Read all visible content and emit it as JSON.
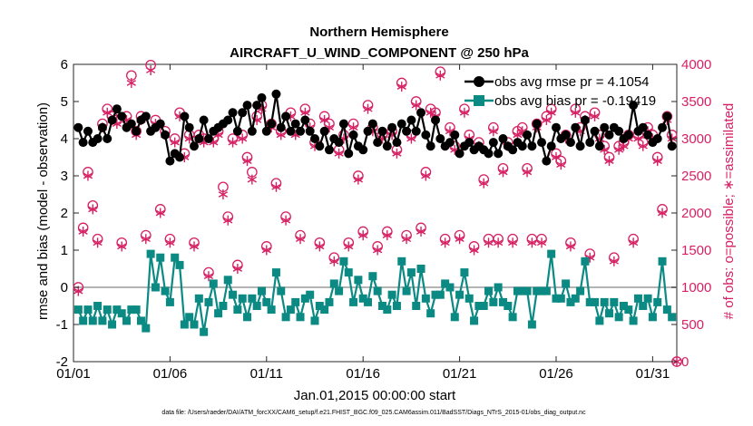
{
  "chart_data": {
    "type": "line",
    "title": "Northern Hemisphere",
    "subtitle": "AIRCRAFT_U_WIND_COMPONENT @ 250 hPa",
    "xlabel": "Jan.01,2015 00:00:00 start",
    "ylabel": "rmse and bias (model - observation)",
    "y2label": "# of obs: o=possible; ∗=assimilated",
    "footer": "data file: /Users/raeder/DAI/ATM_forcXX/CAM6_setup/f.e21.FHIST_BGC.f09_025.CAM6assim.011/BadSST/Diags_NTrS_2015-01/obs_diag_output.nc",
    "xlim": [
      0,
      31.25
    ],
    "ylim": [
      -2,
      6
    ],
    "y2lim": [
      0,
      4000
    ],
    "xticks": [
      0,
      5,
      10,
      15,
      20,
      25,
      30
    ],
    "xticklabels": [
      "01/01",
      "01/06",
      "01/11",
      "01/16",
      "01/21",
      "01/26",
      "01/31"
    ],
    "yticks": [
      -2,
      -1,
      0,
      1,
      2,
      3,
      4,
      5,
      6
    ],
    "y2ticks": [
      0,
      500,
      1000,
      1500,
      2000,
      2500,
      3000,
      3500,
      4000
    ],
    "grid": false,
    "legend_location": "top-right",
    "zero_line_color": "#b4b4b4",
    "colors": {
      "rmse": "#000000",
      "bias": "#0b8a84",
      "obs": "#d62063"
    },
    "series": [
      {
        "name": "obs avg rmse pr = 4.1054",
        "axis": "left",
        "color": "#000000",
        "marker": "circle",
        "x": [
          0.25,
          0.5,
          0.75,
          1.0,
          1.25,
          1.5,
          1.75,
          2.0,
          2.25,
          2.5,
          2.75,
          3.0,
          3.25,
          3.5,
          3.75,
          4.0,
          4.25,
          4.5,
          4.75,
          5.0,
          5.25,
          5.5,
          5.75,
          6.0,
          6.25,
          6.5,
          6.75,
          7.0,
          7.25,
          7.5,
          7.75,
          8.0,
          8.25,
          8.5,
          8.75,
          9.0,
          9.25,
          9.5,
          9.75,
          10.0,
          10.25,
          10.5,
          10.75,
          11.0,
          11.25,
          11.5,
          11.75,
          12.0,
          12.25,
          12.5,
          12.75,
          13.0,
          13.25,
          13.5,
          13.75,
          14.0,
          14.25,
          14.5,
          14.75,
          15.0,
          15.25,
          15.5,
          15.75,
          16.0,
          16.25,
          16.5,
          16.75,
          17.0,
          17.25,
          17.5,
          17.75,
          18.0,
          18.25,
          18.5,
          18.75,
          19.0,
          19.25,
          19.5,
          19.75,
          20.0,
          20.25,
          20.5,
          20.75,
          21.0,
          21.25,
          21.5,
          21.75,
          22.0,
          22.25,
          22.5,
          22.75,
          23.0,
          23.25,
          23.5,
          23.75,
          24.0,
          24.25,
          24.5,
          24.75,
          25.0,
          25.25,
          25.5,
          25.75,
          26.0,
          26.25,
          26.5,
          26.75,
          27.0,
          27.25,
          27.5,
          27.75,
          28.0,
          28.25,
          28.5,
          28.75,
          29.0,
          29.25,
          29.5,
          29.75,
          30.0,
          30.25,
          30.5,
          30.75,
          31.0
        ],
        "y": [
          4.3,
          3.9,
          4.2,
          3.9,
          4.0,
          4.3,
          4.0,
          4.5,
          4.8,
          4.6,
          4.3,
          4.4,
          4.2,
          4.5,
          4.6,
          4.2,
          4.3,
          4.4,
          4.1,
          3.4,
          3.6,
          3.5,
          4.6,
          4.3,
          3.8,
          4.0,
          4.5,
          4.0,
          4.2,
          4.3,
          4.4,
          4.5,
          4.7,
          4.2,
          4.7,
          4.9,
          4.2,
          4.9,
          5.1,
          4.2,
          4.4,
          5.2,
          4.3,
          4.6,
          4.2,
          4.4,
          4.2,
          4.5,
          4.2,
          4.0,
          3.8,
          4.2,
          3.7,
          4.0,
          3.9,
          4.4,
          3.6,
          4.1,
          3.8,
          3.7,
          4.2,
          4.4,
          3.9,
          4.2,
          3.8,
          4.3,
          3.9,
          4.4,
          4.2,
          4.5,
          4.2,
          4.7,
          4.1,
          3.8,
          4.5,
          4.0,
          3.8,
          3.9,
          4.1,
          3.6,
          3.8,
          3.9,
          3.7,
          3.8,
          3.7,
          3.6,
          3.9,
          3.6,
          4.0,
          3.8,
          3.7,
          3.9,
          3.8,
          4.1,
          3.8,
          4.4,
          3.9,
          3.4,
          3.8,
          4.3,
          4.0,
          4.1,
          3.9,
          4.3,
          3.8,
          4.5,
          3.9,
          4.2,
          3.8,
          4.3,
          4.1,
          4.3,
          4.2,
          4.0,
          4.1,
          4.9,
          4.2,
          4.3,
          4.1,
          3.9,
          4.0,
          4.3,
          4.6,
          3.8
        ]
      },
      {
        "name": "obs avg bias pr = -0.19419",
        "axis": "left",
        "color": "#0b8a84",
        "marker": "square",
        "x": [
          0.25,
          0.5,
          0.75,
          1.0,
          1.25,
          1.5,
          1.75,
          2.0,
          2.25,
          2.5,
          2.75,
          3.0,
          3.25,
          3.5,
          3.75,
          4.0,
          4.25,
          4.5,
          4.75,
          5.0,
          5.25,
          5.5,
          5.75,
          6.0,
          6.25,
          6.5,
          6.75,
          7.0,
          7.25,
          7.5,
          7.75,
          8.0,
          8.25,
          8.5,
          8.75,
          9.0,
          9.25,
          9.5,
          9.75,
          10.0,
          10.25,
          10.5,
          10.75,
          11.0,
          11.25,
          11.5,
          11.75,
          12.0,
          12.25,
          12.5,
          12.75,
          13.0,
          13.25,
          13.5,
          13.75,
          14.0,
          14.25,
          14.5,
          14.75,
          15.0,
          15.25,
          15.5,
          15.75,
          16.0,
          16.25,
          16.5,
          16.75,
          17.0,
          17.25,
          17.5,
          17.75,
          18.0,
          18.25,
          18.5,
          18.75,
          19.0,
          19.25,
          19.5,
          19.75,
          20.0,
          20.25,
          20.5,
          20.75,
          21.0,
          21.25,
          21.5,
          21.75,
          22.0,
          22.25,
          22.5,
          22.75,
          23.0,
          23.25,
          23.5,
          23.75,
          24.0,
          24.25,
          24.5,
          24.75,
          25.0,
          25.25,
          25.5,
          25.75,
          26.0,
          26.25,
          26.5,
          26.75,
          27.0,
          27.25,
          27.5,
          27.75,
          28.0,
          28.25,
          28.5,
          28.75,
          29.0,
          29.25,
          29.5,
          29.75,
          30.0,
          30.25,
          30.5,
          30.75,
          31.0
        ],
        "y": [
          -0.6,
          -0.9,
          -0.6,
          -0.9,
          -0.5,
          -0.9,
          -0.6,
          -1.0,
          -0.6,
          -0.7,
          -0.9,
          -0.6,
          -0.6,
          -0.9,
          -1.1,
          0.9,
          0.0,
          0.8,
          -0.1,
          -0.4,
          0.8,
          0.6,
          -1.0,
          -0.8,
          -1.0,
          -0.3,
          -1.2,
          -0.4,
          0.1,
          -0.7,
          -0.5,
          0.2,
          -0.2,
          -0.6,
          -0.3,
          -0.8,
          -0.3,
          -0.5,
          -0.1,
          -0.4,
          -0.6,
          0.4,
          -0.1,
          -0.8,
          -0.6,
          -0.4,
          -0.8,
          -0.3,
          -0.2,
          -0.9,
          -0.5,
          -0.6,
          -0.4,
          0.1,
          -0.1,
          0.7,
          0.4,
          -0.4,
          0.2,
          -0.3,
          -0.4,
          0.3,
          -0.1,
          -0.5,
          -0.6,
          -0.2,
          -0.5,
          0.7,
          -0.1,
          0.4,
          -0.5,
          0.5,
          -0.3,
          -0.7,
          -0.2,
          -0.2,
          0.1,
          0.0,
          -0.8,
          -0.2,
          0.4,
          -0.3,
          -0.9,
          -0.5,
          -0.5,
          -0.1,
          -0.4,
          0.0,
          -0.4,
          -0.5,
          -0.8,
          -0.1,
          -0.1,
          -0.1,
          -1.0,
          -0.1,
          -0.1,
          -0.1,
          0.9,
          -0.3,
          -0.3,
          0.1,
          -0.4,
          -0.3,
          -0.1,
          0.7,
          -0.4,
          -0.4,
          -0.9,
          -0.4,
          -0.7,
          -0.4,
          -0.8,
          -0.5,
          -0.6,
          -0.9,
          -0.3,
          -0.5,
          -0.3,
          -0.8,
          -0.4,
          0.7,
          -0.6,
          -0.8
        ]
      },
      {
        "name": "possible",
        "axis": "right",
        "color": "#d62063",
        "marker": "circle-open",
        "x": [
          0.25,
          0.5,
          0.75,
          1.0,
          1.25,
          1.5,
          1.75,
          2.0,
          2.25,
          2.5,
          2.75,
          3.0,
          3.25,
          3.5,
          3.75,
          4.0,
          4.25,
          4.5,
          4.75,
          5.0,
          5.25,
          5.5,
          5.75,
          6.0,
          6.25,
          6.5,
          6.75,
          7.0,
          7.25,
          7.5,
          7.75,
          8.0,
          8.25,
          8.5,
          8.75,
          9.0,
          9.25,
          9.5,
          9.75,
          10.0,
          10.25,
          10.5,
          10.75,
          11.0,
          11.25,
          11.5,
          11.75,
          12.0,
          12.25,
          12.5,
          12.75,
          13.0,
          13.25,
          13.5,
          13.75,
          14.0,
          14.25,
          14.5,
          14.75,
          15.0,
          15.25,
          15.5,
          15.75,
          16.0,
          16.25,
          16.5,
          16.75,
          17.0,
          17.25,
          17.5,
          17.75,
          18.0,
          18.25,
          18.5,
          18.75,
          19.0,
          19.25,
          19.5,
          19.75,
          20.0,
          20.25,
          20.5,
          20.75,
          21.0,
          21.25,
          21.5,
          21.75,
          22.0,
          22.25,
          22.5,
          22.75,
          23.0,
          23.25,
          23.5,
          23.75,
          24.0,
          24.25,
          24.5,
          24.75,
          25.0,
          25.25,
          25.5,
          25.75,
          26.0,
          26.25,
          26.5,
          26.75,
          27.0,
          27.25,
          27.5,
          27.75,
          28.0,
          28.25,
          28.5,
          28.75,
          29.0,
          29.25,
          29.5,
          29.75,
          30.0,
          30.25,
          30.5,
          30.75,
          31.0
        ],
        "y": [
          1000,
          1800,
          2550,
          2100,
          1650,
          3200,
          3400,
          3300,
          3250,
          1600,
          3300,
          3850,
          3100,
          3300,
          1700,
          3990,
          3250,
          2050,
          3100,
          1650,
          3000,
          3350,
          2800,
          3050,
          1600,
          3050,
          3000,
          1200,
          3000,
          3100,
          2350,
          1950,
          3000,
          1300,
          3050,
          2750,
          2550,
          3300,
          3450,
          1550,
          3200,
          2400,
          3100,
          1950,
          3350,
          3100,
          1700,
          3400,
          3200,
          2950,
          1600,
          3300,
          3200,
          1400,
          2850,
          3050,
          1600,
          3200,
          2500,
          1750,
          3450,
          3150,
          1550,
          3050,
          1750,
          3100,
          2850,
          3750,
          1700,
          3050,
          3500,
          1800,
          2550,
          3400,
          3350,
          3900,
          1650,
          3150,
          2900,
          1700,
          3400,
          3050,
          1550,
          2950,
          2450,
          1650,
          3150,
          1650,
          2600,
          2950,
          1650,
          3100,
          3150,
          2600,
          1650,
          3200,
          1650,
          3300,
          3400,
          2800,
          2700,
          3050,
          1600,
          3400,
          3150,
          3300,
          1450,
          3350,
          3050,
          2900,
          2750,
          1400,
          2900,
          2950,
          3050,
          1650,
          3050,
          2950,
          3150,
          3050,
          2750,
          2050,
          3300,
          3050
        ]
      },
      {
        "name": "assimilated",
        "axis": "right",
        "color": "#d62063",
        "marker": "asterisk",
        "x": [
          0.25,
          0.5,
          0.75,
          1.0,
          1.25,
          1.5,
          1.75,
          2.0,
          2.25,
          2.5,
          2.75,
          3.0,
          3.25,
          3.5,
          3.75,
          4.0,
          4.25,
          4.5,
          4.75,
          5.0,
          5.25,
          5.5,
          5.75,
          6.0,
          6.25,
          6.5,
          6.75,
          7.0,
          7.25,
          7.5,
          7.75,
          8.0,
          8.25,
          8.5,
          8.75,
          9.0,
          9.25,
          9.5,
          9.75,
          10.0,
          10.25,
          10.5,
          10.75,
          11.0,
          11.25,
          11.5,
          11.75,
          12.0,
          12.25,
          12.5,
          12.75,
          13.0,
          13.25,
          13.5,
          13.75,
          14.0,
          14.25,
          14.5,
          14.75,
          15.0,
          15.25,
          15.5,
          15.75,
          16.0,
          16.25,
          16.5,
          16.75,
          17.0,
          17.25,
          17.5,
          17.75,
          18.0,
          18.25,
          18.5,
          18.75,
          19.0,
          19.25,
          19.5,
          19.75,
          20.0,
          20.25,
          20.5,
          20.75,
          21.0,
          21.25,
          21.5,
          21.75,
          22.0,
          22.25,
          22.5,
          22.75,
          23.0,
          23.25,
          23.5,
          23.75,
          24.0,
          24.25,
          24.5,
          24.75,
          25.0,
          25.25,
          25.5,
          25.75,
          26.0,
          26.25,
          26.5,
          26.75,
          27.0,
          27.25,
          27.5,
          27.75,
          28.0,
          28.25,
          28.5,
          28.75,
          29.0,
          29.25,
          29.5,
          29.75,
          30.0,
          30.25,
          30.5,
          30.75,
          31.0
        ],
        "y": [
          950,
          1750,
          2500,
          2050,
          1600,
          3150,
          3350,
          3250,
          3200,
          1550,
          3250,
          3750,
          3050,
          3250,
          1650,
          3920,
          3200,
          2000,
          3050,
          1600,
          2950,
          3300,
          2750,
          3000,
          1550,
          3000,
          2950,
          1150,
          2950,
          3050,
          2250,
          1900,
          2950,
          1250,
          3000,
          2700,
          2450,
          3250,
          3400,
          1500,
          3150,
          2350,
          3050,
          1900,
          3300,
          3050,
          1650,
          3350,
          3150,
          2900,
          1550,
          3250,
          3150,
          1350,
          2800,
          3000,
          1550,
          3150,
          2450,
          1700,
          3400,
          3100,
          1500,
          3000,
          1700,
          3050,
          2800,
          3700,
          1650,
          3000,
          3450,
          1750,
          2500,
          3350,
          3300,
          3850,
          1600,
          3100,
          2850,
          1650,
          3350,
          3000,
          1500,
          2900,
          2400,
          1600,
          3100,
          1600,
          2550,
          2900,
          1600,
          3050,
          3100,
          2550,
          1600,
          3150,
          1600,
          3250,
          3350,
          2750,
          2650,
          3000,
          1550,
          3350,
          3100,
          3250,
          1400,
          3300,
          3000,
          2850,
          2700,
          1350,
          2850,
          2900,
          3000,
          1600,
          3000,
          2900,
          3100,
          3000,
          2700,
          2000,
          3250,
          3000
        ]
      }
    ],
    "extra_point": {
      "x": 31.25,
      "y2": 0
    }
  }
}
